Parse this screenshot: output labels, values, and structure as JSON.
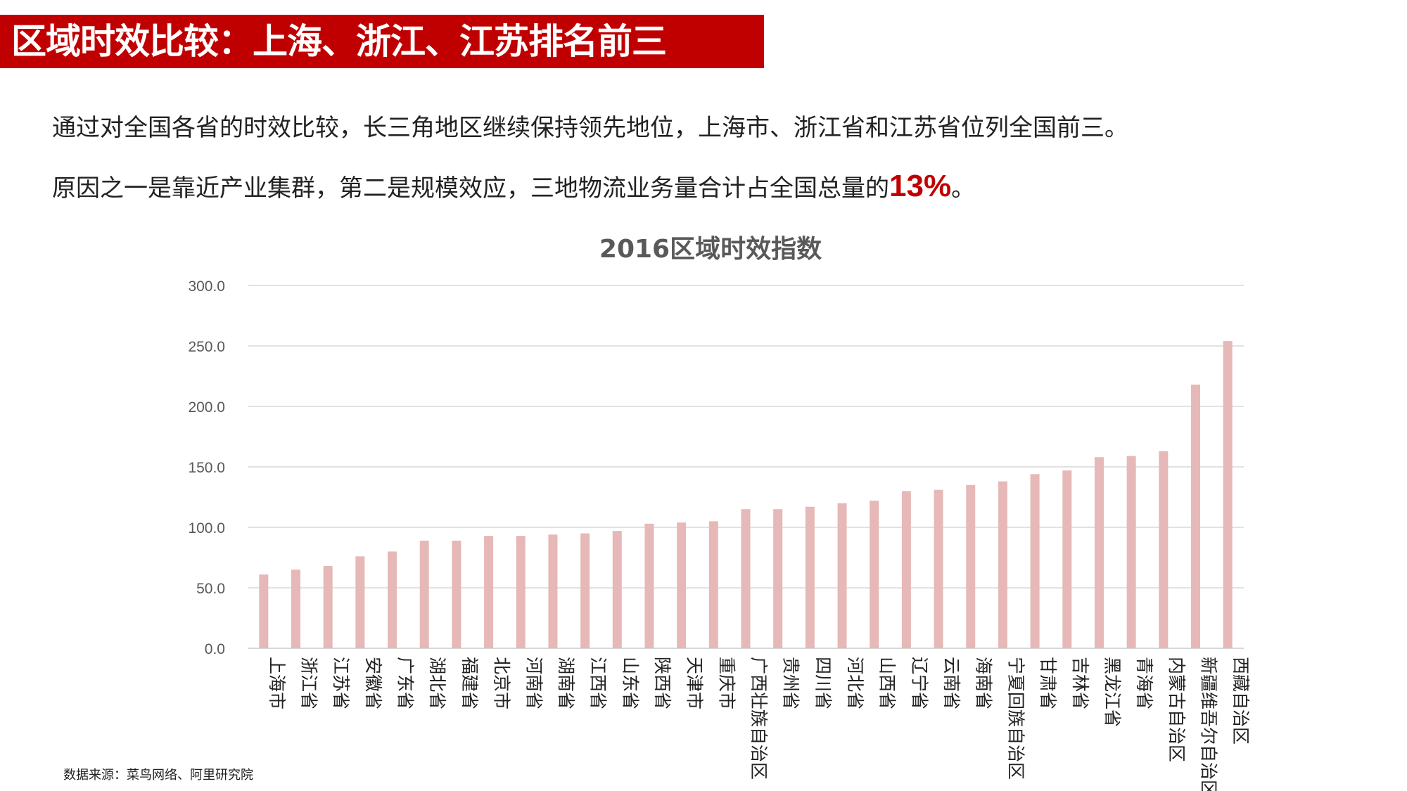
{
  "header": {
    "title": "区域时效比较：上海、浙江、江苏排名前三"
  },
  "summary": {
    "line1": "通过对全国各省的时效比较，长三角地区继续保持领先地位，上海市、浙江省和江苏省位列全国前三。",
    "line2_prefix": "原因之一是靠近产业集群，第二是规模效应，三地物流业务量合计占全国总量的",
    "highlight": "13%",
    "line2_suffix": "。"
  },
  "source": "数据来源：菜鸟网络、阿里研究院",
  "colors": {
    "title_bar": "#c00000",
    "bar": "#e6b8b7",
    "grid": "#d9d9d9",
    "highlight": "#c00000"
  },
  "chart_data": {
    "type": "bar",
    "title": "2016区域时效指数",
    "xlabel": "",
    "ylabel": "",
    "ylim": [
      0,
      300
    ],
    "yticks": [
      "0.0",
      "50.0",
      "100.0",
      "150.0",
      "200.0",
      "250.0",
      "300.0"
    ],
    "grid": true,
    "legend": "none",
    "categories": [
      "上海市",
      "浙江省",
      "江苏省",
      "安徽省",
      "广东省",
      "湖北省",
      "福建省",
      "北京市",
      "河南省",
      "湖南省",
      "江西省",
      "山东省",
      "陕西省",
      "天津市",
      "重庆市",
      "广西壮族自治区",
      "贵州省",
      "四川省",
      "河北省",
      "山西省",
      "辽宁省",
      "云南省",
      "海南省",
      "宁夏回族自治区",
      "甘肃省",
      "吉林省",
      "黑龙江省",
      "青海省",
      "内蒙古自治区",
      "新疆维吾尔自治区",
      "西藏自治区"
    ],
    "values": [
      61,
      65,
      68,
      76,
      80,
      89,
      89,
      93,
      93,
      94,
      95,
      97,
      103,
      104,
      105,
      115,
      115,
      117,
      120,
      122,
      130,
      131,
      135,
      138,
      144,
      147,
      158,
      159,
      163,
      218,
      254
    ]
  }
}
